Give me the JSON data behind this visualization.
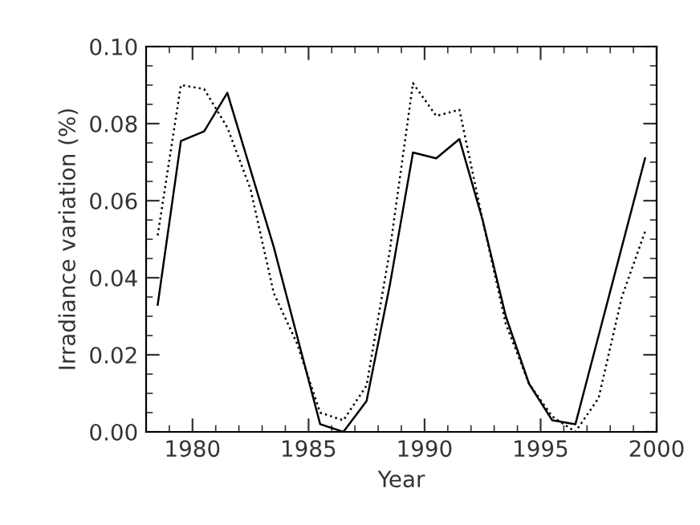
{
  "chart_data": {
    "type": "line",
    "xlabel": "Year",
    "ylabel": "Irradiance variation (%)",
    "x": [
      1978.5,
      1979.5,
      1980.5,
      1981.5,
      1982.5,
      1983.5,
      1984.5,
      1985.5,
      1986.5,
      1987.5,
      1988.5,
      1989.5,
      1990.5,
      1991.5,
      1992.5,
      1993.5,
      1994.5,
      1995.5,
      1996.5,
      1997.5,
      1998.5,
      1999.5
    ],
    "series": [
      {
        "color": "#000000",
        "line_style": "solid",
        "values": [
          0.033,
          0.0755,
          0.078,
          0.088,
          0.068,
          0.048,
          0.025,
          0.002,
          0.0,
          0.008,
          0.038,
          0.0725,
          0.071,
          0.076,
          0.055,
          0.03,
          0.0125,
          0.003,
          0.002,
          0.025,
          0.048,
          0.071
        ]
      },
      {
        "color": "#000000",
        "line_style": "dotted",
        "values": [
          0.051,
          0.09,
          0.089,
          0.079,
          0.063,
          0.036,
          0.023,
          0.005,
          0.003,
          0.012,
          0.047,
          0.0905,
          0.082,
          0.0836,
          0.055,
          0.028,
          0.0125,
          0.004,
          0.0,
          0.0088,
          0.035,
          0.052
        ]
      }
    ],
    "xlim": [
      1978,
      2000
    ],
    "xticks": [
      1980,
      1985,
      1990,
      1995,
      2000
    ],
    "ylim": [
      0,
      0.1
    ],
    "yticks": [
      {
        "value": 0,
        "label": "0.00"
      },
      {
        "value": 0.02,
        "label": "0.02"
      },
      {
        "value": 0.04,
        "label": "0.04"
      },
      {
        "value": 0.06,
        "label": "0.06"
      },
      {
        "value": 0.08,
        "label": "0.08"
      },
      {
        "value": 0.1,
        "label": "0.10"
      }
    ],
    "grid": false,
    "legend": false
  }
}
